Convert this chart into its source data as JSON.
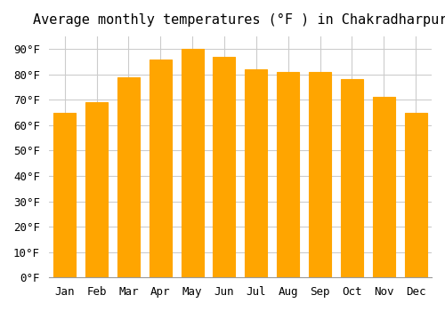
{
  "title": "Average monthly temperatures (°F ) in Chakradharpur",
  "months": [
    "Jan",
    "Feb",
    "Mar",
    "Apr",
    "May",
    "Jun",
    "Jul",
    "Aug",
    "Sep",
    "Oct",
    "Nov",
    "Dec"
  ],
  "values": [
    65,
    69,
    79,
    86,
    90,
    87,
    82,
    81,
    81,
    78,
    71,
    65
  ],
  "bar_color": "#FFA500",
  "bar_edge_color": "#E08000",
  "background_color": "#FFFFFF",
  "grid_color": "#CCCCCC",
  "ylim": [
    0,
    95
  ],
  "yticks": [
    0,
    10,
    20,
    30,
    40,
    50,
    60,
    70,
    80,
    90
  ],
  "ytick_labels": [
    "0°F",
    "10°F",
    "20°F",
    "30°F",
    "40°F",
    "50°F",
    "60°F",
    "70°F",
    "80°F",
    "90°F"
  ],
  "title_fontsize": 11,
  "tick_fontsize": 9,
  "font_family": "monospace"
}
